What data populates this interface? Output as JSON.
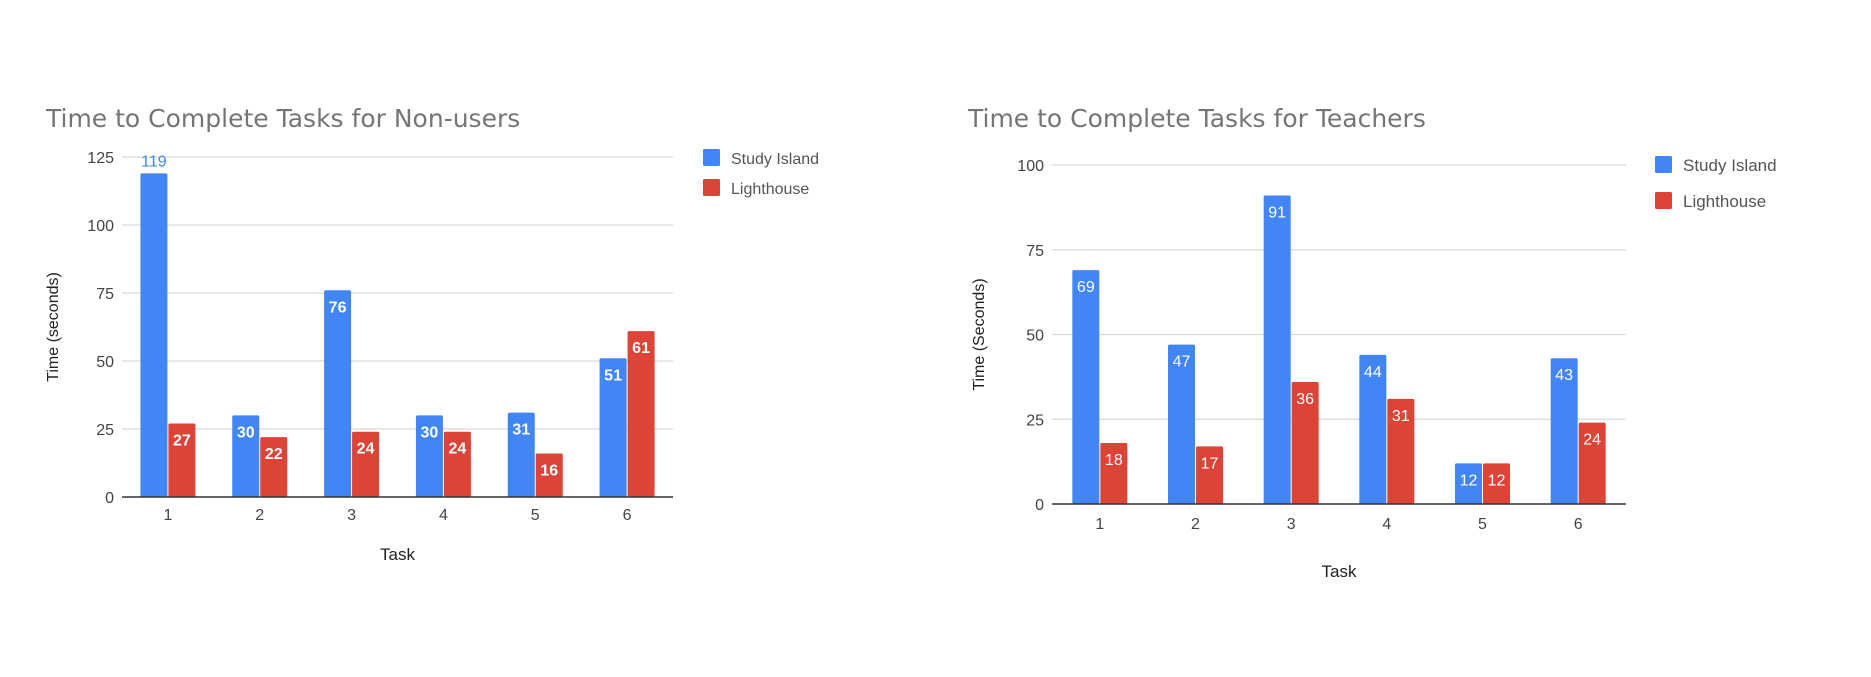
{
  "chart_data": [
    {
      "type": "bar",
      "title": "Time to Complete Tasks for Non-users",
      "xlabel": "Task",
      "ylabel": "Time (seconds)",
      "categories": [
        "1",
        "2",
        "3",
        "4",
        "5",
        "6"
      ],
      "ylim": [
        0,
        125
      ],
      "yticks": [
        0,
        25,
        50,
        75,
        100,
        125
      ],
      "grid": true,
      "legend_position": "right",
      "series": [
        {
          "name": "Study Island",
          "color": "#4285F4",
          "values": [
            119,
            30,
            76,
            30,
            31,
            51
          ]
        },
        {
          "name": "Lighthouse",
          "color": "#DB4437",
          "values": [
            27,
            22,
            24,
            24,
            16,
            61
          ]
        }
      ]
    },
    {
      "type": "bar",
      "title": "Time to Complete Tasks for Teachers",
      "xlabel": "Task",
      "ylabel": "Time (Seconds)",
      "categories": [
        "1",
        "2",
        "3",
        "4",
        "5",
        "6"
      ],
      "ylim": [
        0,
        100
      ],
      "yticks": [
        0,
        25,
        50,
        75,
        100
      ],
      "grid": true,
      "legend_position": "right",
      "series": [
        {
          "name": "Study Island",
          "color": "#4285F4",
          "values": [
            69,
            47,
            91,
            44,
            12,
            43
          ]
        },
        {
          "name": "Lighthouse",
          "color": "#DB4437",
          "values": [
            18,
            17,
            36,
            31,
            12,
            24
          ]
        }
      ]
    }
  ]
}
